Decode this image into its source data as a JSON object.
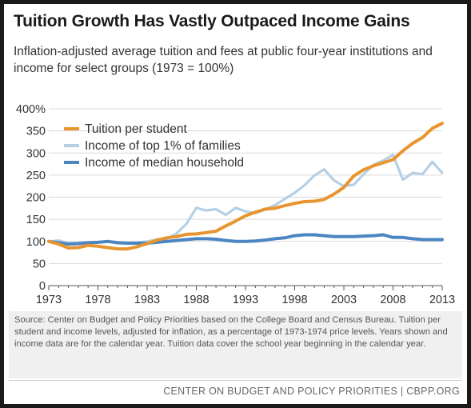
{
  "chart_data": {
    "type": "line",
    "title": "Tuition Growth Has Vastly Outpaced Income Gains",
    "subtitle": "Inflation-adjusted average tuition and fees at public four-year institutions and income for select groups (1973 = 100%)",
    "xlabel": "",
    "ylabel": "",
    "xlim": [
      1973,
      2013
    ],
    "ylim": [
      0,
      400
    ],
    "x_ticks": [
      "1973",
      "1978",
      "1983",
      "1988",
      "1993",
      "1998",
      "2003",
      "2008",
      "2013"
    ],
    "y_ticks": [
      "0",
      "50",
      "100",
      "150",
      "200",
      "250",
      "300",
      "350",
      "400%"
    ],
    "grid": "horizontal",
    "legend_position": "top-left",
    "x": [
      1973,
      1974,
      1975,
      1976,
      1977,
      1978,
      1979,
      1980,
      1981,
      1982,
      1983,
      1984,
      1985,
      1986,
      1987,
      1988,
      1989,
      1990,
      1991,
      1992,
      1993,
      1994,
      1995,
      1996,
      1997,
      1998,
      1999,
      2000,
      2001,
      2002,
      2003,
      2004,
      2005,
      2006,
      2007,
      2008,
      2009,
      2010,
      2011,
      2012,
      2013
    ],
    "series": [
      {
        "name": "Tuition per student",
        "color": "#e8952f",
        "values": [
          100,
          94,
          85,
          86,
          91,
          89,
          86,
          83,
          83,
          88,
          95,
          103,
          108,
          111,
          116,
          117,
          120,
          123,
          135,
          146,
          158,
          166,
          173,
          175,
          181,
          186,
          190,
          191,
          195,
          207,
          222,
          248,
          262,
          271,
          278,
          285,
          305,
          322,
          335,
          356,
          367
        ]
      },
      {
        "name": "Income of top 1% of families",
        "color": "#b5d0e6",
        "values": [
          100,
          102,
          96,
          96,
          97,
          98,
          100,
          97,
          96,
          98,
          100,
          104,
          106,
          118,
          140,
          176,
          170,
          173,
          160,
          176,
          168,
          164,
          172,
          182,
          196,
          210,
          227,
          249,
          263,
          238,
          225,
          228,
          252,
          273,
          283,
          296,
          240,
          255,
          252,
          280,
          255
        ]
      },
      {
        "name": "Income of median household",
        "color": "#4b86c3",
        "values": [
          100,
          97,
          94,
          95,
          97,
          98,
          100,
          97,
          96,
          96,
          96,
          98,
          100,
          102,
          104,
          106,
          106,
          105,
          102,
          100,
          100,
          101,
          103,
          106,
          108,
          113,
          115,
          115,
          113,
          111,
          111,
          111,
          112,
          113,
          115,
          109,
          109,
          106,
          104,
          104,
          104
        ]
      }
    ]
  },
  "source_text": "Source: Center on Budget and Policy Priorities based on the College Board and Census Bureau. Tuition per student and income levels, adjusted for inflation, as a percentage of 1973-1974 price levels. Years shown and income data are for the calendar year. Tuition data cover the school year beginning in the calendar year.",
  "footer": "CENTER ON BUDGET AND POLICY PRIORITIES | CBPP.ORG"
}
